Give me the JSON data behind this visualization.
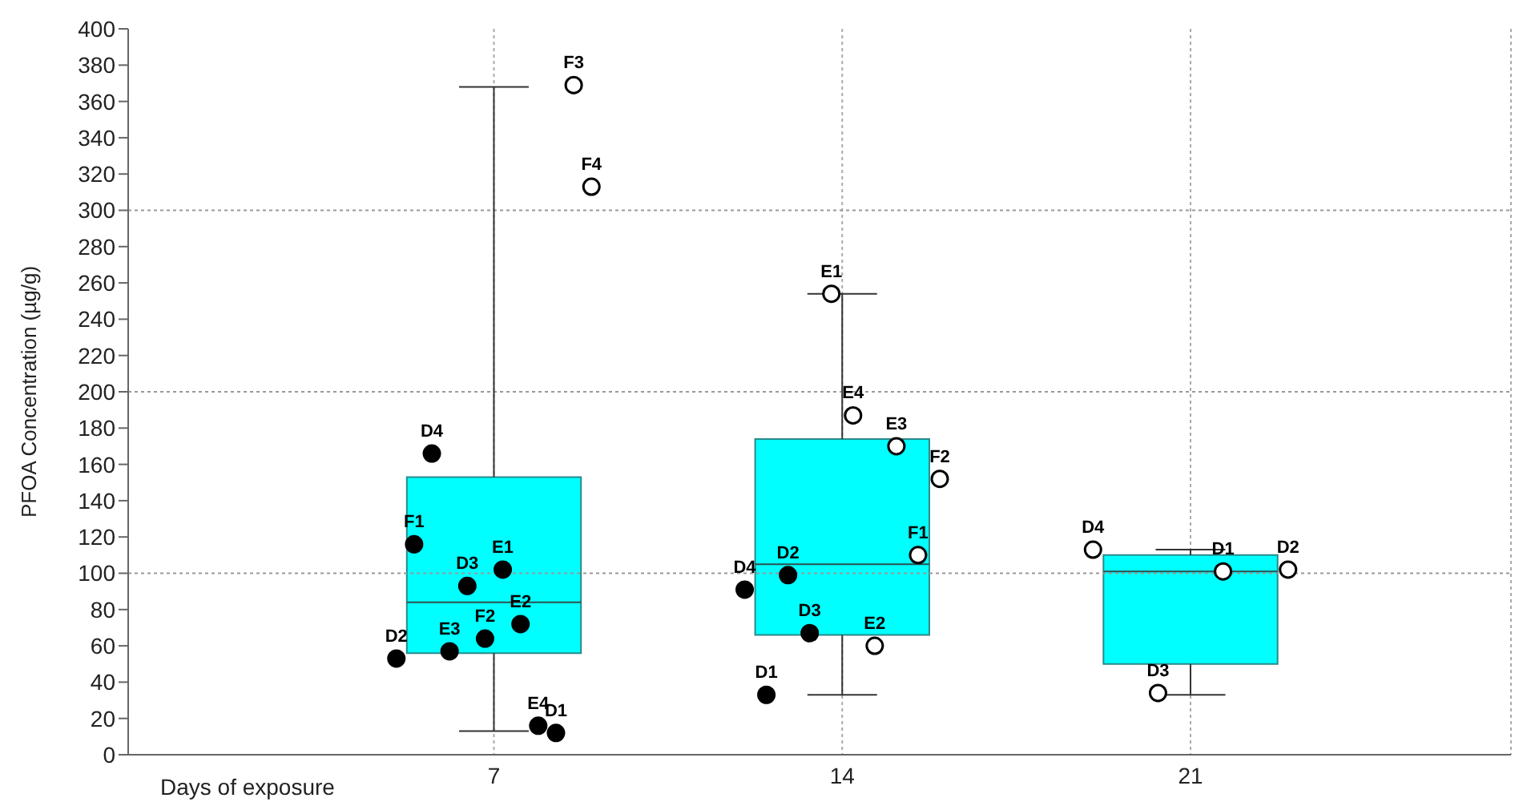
{
  "chart_data": {
    "type": "box",
    "ylabel": "PFOA  Concentration (µg/g)",
    "xlabel": "Days of exposure",
    "categories": [
      "7",
      "14",
      "21"
    ],
    "ylim": [
      0,
      400
    ],
    "yticks": [
      0,
      20,
      40,
      60,
      80,
      100,
      120,
      140,
      160,
      180,
      200,
      220,
      240,
      260,
      280,
      300,
      320,
      340,
      360,
      380,
      400
    ],
    "grid": "x",
    "marker": "circle",
    "ref_lines": [
      {
        "axis": "y",
        "value": 100,
        "line_style": "dotted",
        "color": "#999999"
      },
      {
        "axis": "y",
        "value": 200,
        "line_style": "dotted",
        "color": "#999999"
      },
      {
        "axis": "y",
        "value": 300,
        "line_style": "dotted",
        "color": "#999999"
      }
    ],
    "series": [
      {
        "color": "#00ffff",
        "boxes": [
          {
            "low": 13,
            "q1": 56,
            "median": 84,
            "q3": 153,
            "high": 368
          },
          {
            "low": 33,
            "q1": 66,
            "median": 105,
            "q3": 174,
            "high": 254
          },
          {
            "low": 33,
            "q1": 50,
            "median": 101,
            "q3": 110,
            "high": 113
          }
        ]
      },
      {
        "type": "scatter",
        "color": "#000000",
        "x": [
          "7",
          "7",
          "7",
          "7",
          "7",
          "7",
          "7",
          "7",
          "7",
          "7",
          "14",
          "14",
          "14",
          "14"
        ],
        "values": [
          53,
          116,
          166,
          57,
          93,
          64,
          102,
          72,
          16,
          12,
          91,
          33,
          99,
          67
        ],
        "value_labels": [
          "D2",
          "F1",
          "D4",
          "E3",
          "D3",
          "F2",
          "E1",
          "E2",
          "E4",
          "D1",
          "D4",
          "D1",
          "D2",
          "D3"
        ]
      },
      {
        "type": "scatter",
        "color": "#ffffff",
        "x": [
          "7",
          "7",
          "14",
          "14",
          "14",
          "14",
          "14",
          "14",
          "21",
          "21",
          "21",
          "21"
        ],
        "values": [
          369,
          313,
          254,
          187,
          60,
          170,
          110,
          152,
          113,
          34,
          101,
          102
        ],
        "value_labels": [
          "F3",
          "F4",
          "E1",
          "E4",
          "E2",
          "E3",
          "F1",
          "F2",
          "D4",
          "D3",
          "D1",
          "D2"
        ]
      }
    ]
  }
}
